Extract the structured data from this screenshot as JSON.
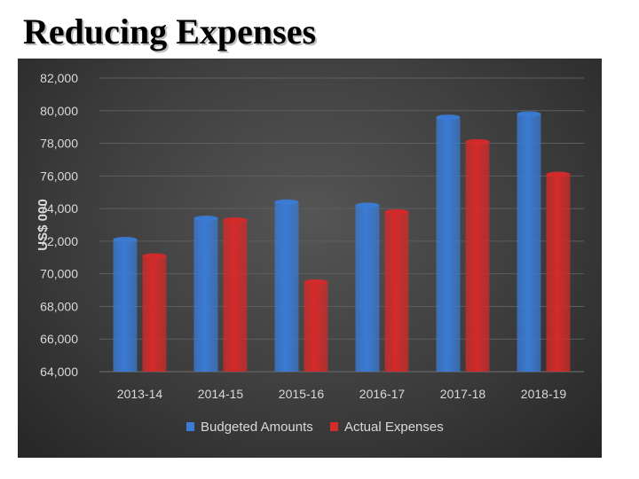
{
  "title": "Reducing Expenses",
  "colors": {
    "budgeted": "#3a7bd5",
    "actual": "#d42a2a",
    "panel": "#3d3d3d",
    "grid": "#5e5e5e",
    "text": "#d9d9d9"
  },
  "chart_data": {
    "type": "bar",
    "categories": [
      "2013-14",
      "2014-15",
      "2015-16",
      "2016-17",
      "2017-18",
      "2018-19"
    ],
    "series": [
      {
        "name": "Budgeted Amounts",
        "values": [
          72100,
          73400,
          74400,
          74200,
          79600,
          79800
        ]
      },
      {
        "name": "Actual Expenses",
        "values": [
          71100,
          73300,
          69500,
          73800,
          78100,
          76100
        ]
      }
    ],
    "xlabel": "",
    "ylabel": "US$ 000",
    "ylim": [
      64000,
      82000
    ],
    "yticks": [
      "64,000",
      "66,000",
      "68,000",
      "70,000",
      "72,000",
      "74,000",
      "76,000",
      "78,000",
      "80,000",
      "82,000"
    ],
    "grid": true,
    "legend": "bottom"
  }
}
